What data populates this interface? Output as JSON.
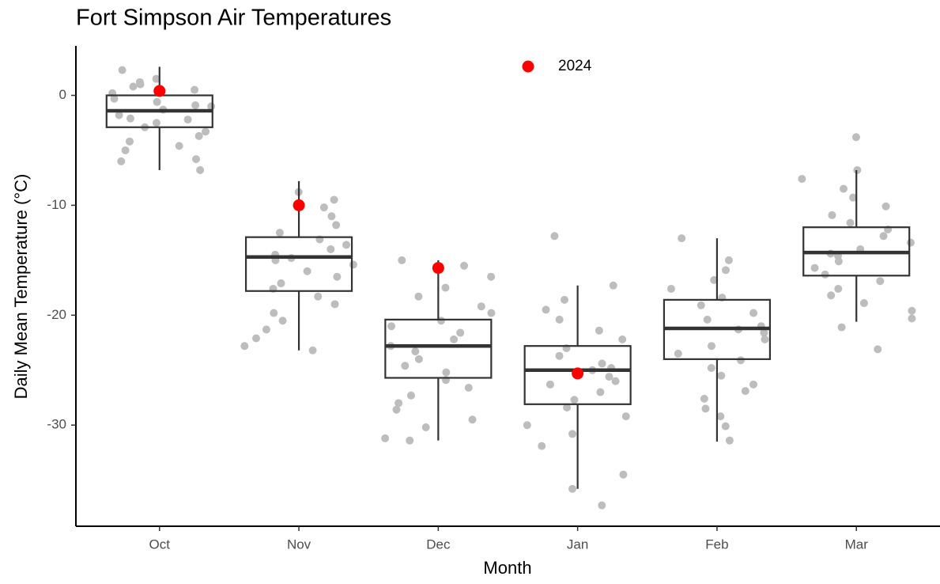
{
  "chart_data": {
    "type": "box",
    "title": "Fort Simpson Air Temperatures",
    "xlabel": "Month",
    "ylabel": "Daily Mean Temperature (°C)",
    "categories": [
      "Oct",
      "Nov",
      "Dec",
      "Jan",
      "Feb",
      "Mar"
    ],
    "stats": {
      "min": [
        -6.8,
        -23.2,
        -31.4,
        -35.8,
        -31.5,
        -20.6
      ],
      "q1": [
        -2.9,
        -17.8,
        -25.7,
        -28.1,
        -24.0,
        -16.4
      ],
      "median": [
        -1.4,
        -14.7,
        -22.8,
        -25.0,
        -21.2,
        -14.3
      ],
      "q3": [
        0,
        -12.9,
        -20.4,
        -22.8,
        -18.6,
        -12.0
      ],
      "max": [
        2.6,
        -7.8,
        -15.0,
        -17.3,
        -13.0,
        -6.8
      ]
    },
    "box_color": "#333333",
    "points_color": "#bdbdbd",
    "points": [
      [
        2.3,
        1.5,
        1.0,
        0.8,
        0.5,
        0.2,
        -0.3,
        -0.6,
        -1.0,
        -1.3,
        -1.8,
        -2.1,
        -2.5,
        -2.9,
        -3.3,
        -3.7,
        -4.2,
        -4.6,
        -5.0,
        -5.8,
        -6.0,
        -6.8,
        1.2,
        -0.9,
        -2.2
      ],
      [
        -8.8,
        -9.5,
        -10.2,
        -11.0,
        -11.8,
        -12.5,
        -13.1,
        -13.6,
        -14.0,
        -14.5,
        -15.0,
        -15.4,
        -16.0,
        -16.5,
        -17.1,
        -17.6,
        -18.3,
        -19.0,
        -19.8,
        -20.5,
        -21.3,
        -22.1,
        -22.8,
        -23.2,
        -14.8
      ],
      [
        -15.0,
        -15.5,
        -16.5,
        -17.5,
        -18.3,
        -19.2,
        -19.8,
        -20.5,
        -21.0,
        -21.6,
        -22.2,
        -22.8,
        -23.3,
        -24.0,
        -24.6,
        -25.2,
        -25.9,
        -26.6,
        -27.3,
        -28.0,
        -28.6,
        -29.5,
        -30.2,
        -31.2,
        -31.4
      ],
      [
        -12.8,
        -17.3,
        -18.6,
        -19.5,
        -20.4,
        -21.4,
        -22.2,
        -23.0,
        -23.7,
        -24.4,
        -25.0,
        -25.6,
        -26.3,
        -27.0,
        -27.7,
        -28.4,
        -29.2,
        -30.0,
        -30.8,
        -31.9,
        -34.5,
        -35.8,
        -37.3,
        -24.8,
        -26.0
      ],
      [
        -13.0,
        -15.0,
        -15.9,
        -16.8,
        -17.6,
        -18.4,
        -19.1,
        -19.8,
        -20.4,
        -21.0,
        -21.6,
        -22.2,
        -22.8,
        -23.5,
        -24.1,
        -24.8,
        -25.5,
        -26.3,
        -26.9,
        -27.6,
        -28.5,
        -29.2,
        -30.1,
        -31.4,
        -21.3
      ],
      [
        -3.8,
        -6.8,
        -7.6,
        -8.5,
        -9.3,
        -10.1,
        -10.9,
        -11.6,
        -12.2,
        -12.8,
        -13.4,
        -14.0,
        -14.6,
        -15.1,
        -15.7,
        -16.3,
        -16.9,
        -17.6,
        -18.2,
        -18.9,
        -19.6,
        -20.3,
        -21.1,
        -23.1,
        -14.4
      ]
    ],
    "series": [
      {
        "name": "2024",
        "color": "#ff0000",
        "values": [
          0.4,
          -10,
          -15.7,
          -25.3,
          null,
          null
        ]
      }
    ],
    "legend": "top",
    "ylim": [
      -39.2,
      4.5
    ],
    "yticks": [
      0,
      -10,
      -20,
      -30
    ]
  }
}
